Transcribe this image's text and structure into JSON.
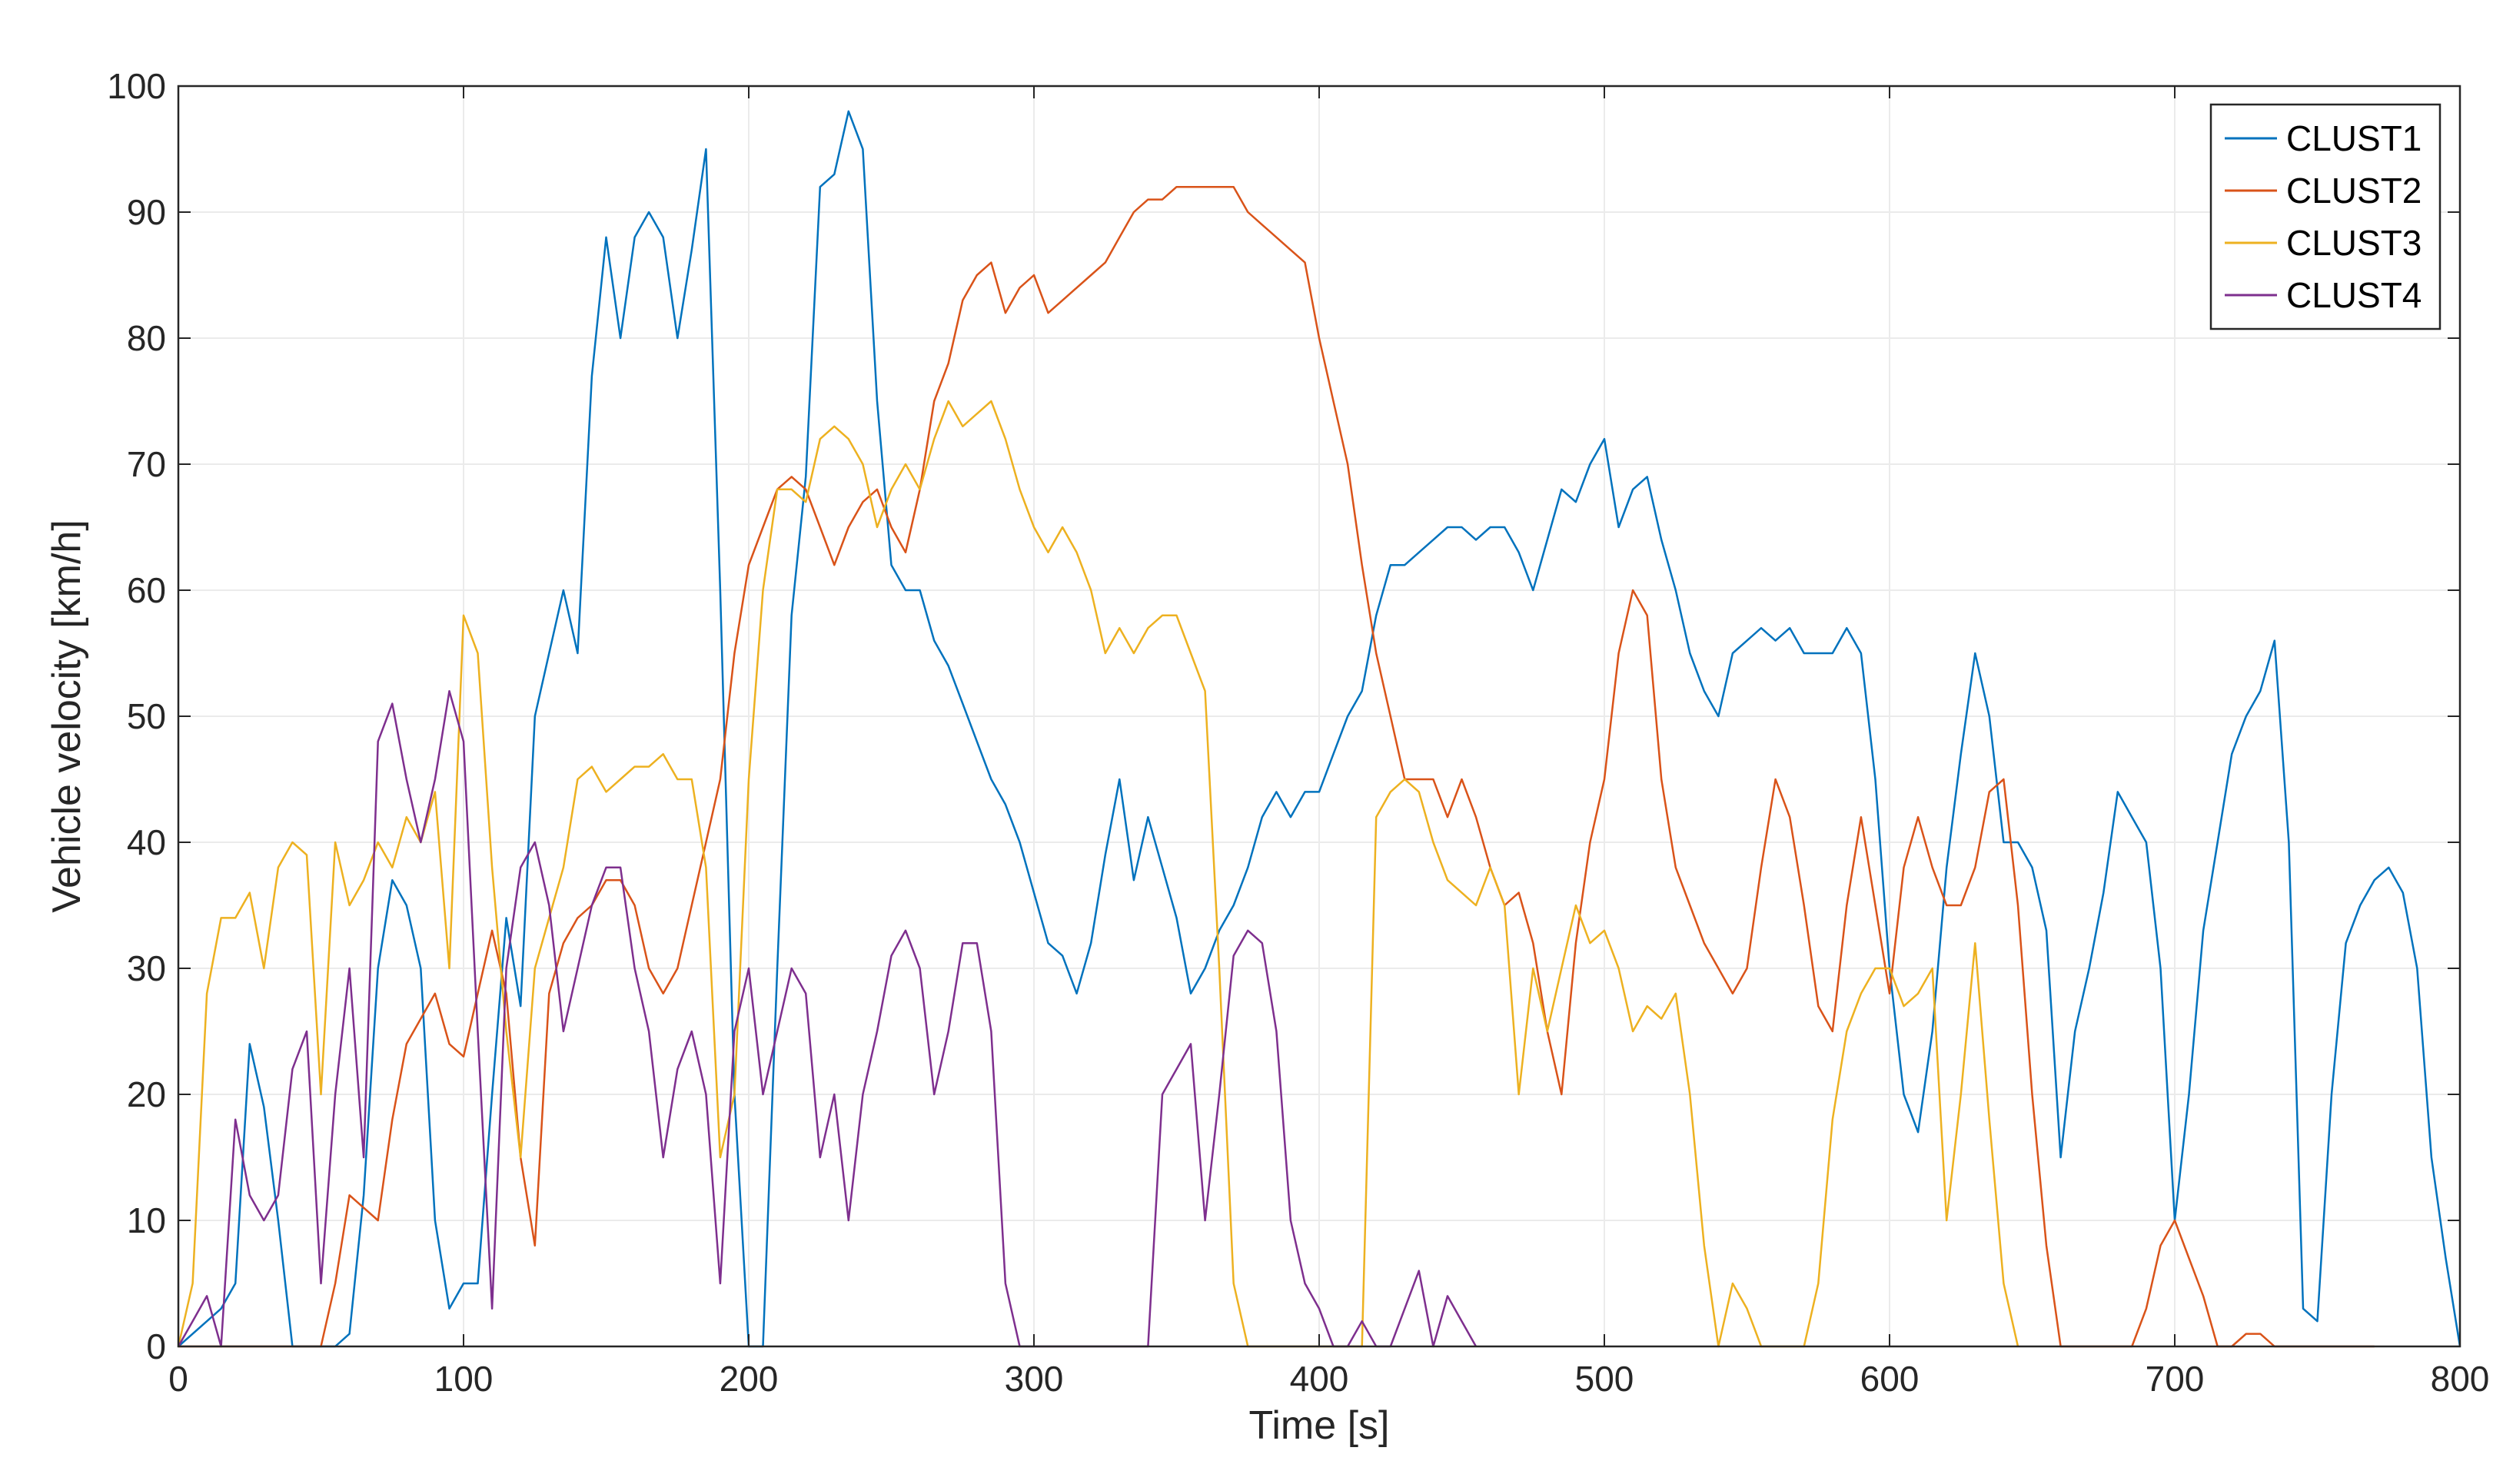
{
  "chart_data": {
    "type": "line",
    "title": "",
    "xlabel": "Time [s]",
    "ylabel": "Vehicle velocity [km/h]",
    "xlim": [
      0,
      800
    ],
    "ylim": [
      0,
      100
    ],
    "xticks": [
      "0",
      "100",
      "200",
      "300",
      "400",
      "500",
      "600",
      "700",
      "800"
    ],
    "yticks": [
      "0",
      "10",
      "20",
      "30",
      "40",
      "50",
      "60",
      "70",
      "80",
      "90",
      "100"
    ],
    "grid": true,
    "legend_position": "top-right",
    "series": [
      {
        "name": "CLUST1",
        "color": "#0072BD",
        "x": [
          0,
          5,
          10,
          15,
          20,
          25,
          30,
          35,
          40,
          45,
          50,
          55,
          60,
          65,
          70,
          75,
          80,
          85,
          90,
          95,
          100,
          105,
          110,
          115,
          120,
          125,
          130,
          135,
          140,
          145,
          150,
          155,
          160,
          165,
          170,
          175,
          180,
          185,
          190,
          195,
          200,
          205,
          210,
          215,
          220,
          225,
          230,
          235,
          240,
          245,
          250,
          255,
          260,
          265,
          270,
          275,
          280,
          285,
          290,
          295,
          300,
          305,
          310,
          315,
          320,
          325,
          330,
          335,
          340,
          345,
          350,
          355,
          360,
          365,
          370,
          375,
          380,
          385,
          390,
          395,
          400,
          405,
          410,
          415,
          420,
          425,
          430,
          435,
          440,
          445,
          450,
          455,
          460,
          465,
          470,
          475,
          480,
          485,
          490,
          495,
          500,
          505,
          510,
          515,
          520,
          525,
          530,
          535,
          540,
          545,
          550,
          555,
          560,
          565,
          570,
          575,
          580,
          585,
          590,
          595,
          600,
          605,
          610,
          615,
          620,
          625,
          630,
          635,
          640,
          645,
          650,
          655,
          660,
          665,
          670,
          675,
          680,
          685,
          690,
          695,
          700,
          705,
          710,
          715,
          720,
          725,
          730,
          735,
          740,
          745,
          750,
          755,
          760,
          765,
          770,
          775,
          780,
          785,
          790,
          795,
          800
        ],
        "values": [
          0,
          1,
          2,
          3,
          5,
          24,
          19,
          10,
          0,
          0,
          0,
          0,
          1,
          12,
          30,
          37,
          35,
          30,
          10,
          3,
          5,
          5,
          20,
          34,
          27,
          50,
          55,
          60,
          55,
          77,
          88,
          80,
          88,
          90,
          88,
          80,
          87,
          95,
          60,
          20,
          0,
          0,
          30,
          58,
          69,
          92,
          93,
          98,
          95,
          75,
          62,
          60,
          60,
          56,
          54,
          51,
          48,
          45,
          43,
          40,
          36,
          32,
          31,
          28,
          32,
          39,
          45,
          37,
          42,
          38,
          34,
          28,
          30,
          33,
          35,
          38,
          42,
          44,
          42,
          44,
          44,
          47,
          50,
          52,
          58,
          62,
          62,
          63,
          64,
          65,
          65,
          64,
          65,
          65,
          63,
          60,
          64,
          68,
          67,
          70,
          72,
          65,
          68,
          69,
          64,
          60,
          55,
          52,
          50,
          55,
          56,
          57,
          56,
          57,
          55,
          55,
          55,
          57,
          55,
          45,
          30,
          20,
          17,
          25,
          38,
          47,
          55,
          50,
          40,
          40,
          38,
          33,
          15,
          25,
          30,
          36,
          44,
          42,
          40,
          30,
          10,
          20,
          33,
          40,
          47,
          50,
          52,
          56,
          40,
          3,
          2,
          20,
          32,
          35,
          37,
          38,
          36,
          30,
          15,
          7,
          0
        ]
      },
      {
        "name": "CLUST2",
        "color": "#D95319",
        "x": [
          0,
          5,
          10,
          15,
          20,
          25,
          30,
          35,
          40,
          45,
          50,
          55,
          60,
          65,
          70,
          75,
          80,
          85,
          90,
          95,
          100,
          105,
          110,
          115,
          120,
          125,
          130,
          135,
          140,
          145,
          150,
          155,
          160,
          165,
          170,
          175,
          180,
          185,
          190,
          195,
          200,
          205,
          210,
          215,
          220,
          225,
          230,
          235,
          240,
          245,
          250,
          255,
          260,
          265,
          270,
          275,
          280,
          285,
          290,
          295,
          300,
          305,
          310,
          315,
          320,
          325,
          330,
          335,
          340,
          345,
          350,
          355,
          360,
          365,
          370,
          375,
          380,
          385,
          390,
          395,
          400,
          405,
          410,
          415,
          420,
          425,
          430,
          435,
          440,
          445,
          450,
          455,
          460,
          465,
          470,
          475,
          480,
          485,
          490,
          495,
          500,
          505,
          510,
          515,
          520,
          525,
          530,
          535,
          540,
          545,
          550,
          555,
          560,
          565,
          570,
          575,
          580,
          585,
          590,
          595,
          600,
          605,
          610,
          615,
          620,
          625,
          630,
          635,
          640,
          645,
          650,
          655,
          660,
          665,
          670,
          675,
          680,
          685,
          690,
          695,
          700,
          705,
          710,
          715,
          720,
          725,
          730,
          735,
          740,
          745,
          750,
          755,
          760,
          765,
          770
        ],
        "values": [
          0,
          0,
          0,
          0,
          0,
          0,
          0,
          0,
          0,
          0,
          0,
          5,
          12,
          11,
          10,
          18,
          24,
          26,
          28,
          24,
          23,
          28,
          33,
          28,
          15,
          8,
          28,
          32,
          34,
          35,
          37,
          37,
          35,
          30,
          28,
          30,
          35,
          40,
          45,
          55,
          62,
          65,
          68,
          69,
          68,
          65,
          62,
          65,
          67,
          68,
          65,
          63,
          68,
          75,
          78,
          83,
          85,
          86,
          82,
          84,
          85,
          82,
          83,
          84,
          85,
          86,
          88,
          90,
          91,
          91,
          92,
          92,
          92,
          92,
          92,
          90,
          89,
          88,
          87,
          86,
          80,
          75,
          70,
          62,
          55,
          50,
          45,
          45,
          45,
          42,
          45,
          42,
          38,
          35,
          36,
          32,
          25,
          20,
          32,
          40,
          45,
          55,
          60,
          58,
          45,
          38,
          35,
          32,
          30,
          28,
          30,
          38,
          45,
          42,
          35,
          27,
          25,
          35,
          42,
          35,
          28,
          38,
          42,
          38,
          35,
          35,
          38,
          44,
          45,
          35,
          20,
          8,
          0,
          0,
          0,
          0,
          0,
          0,
          3,
          8,
          10,
          7,
          4,
          0,
          0,
          1,
          1,
          0,
          0,
          0,
          0,
          0,
          0,
          0,
          0
        ]
      },
      {
        "name": "CLUST3",
        "color": "#EDB120",
        "x": [
          0,
          5,
          10,
          15,
          20,
          25,
          30,
          35,
          40,
          45,
          50,
          55,
          60,
          65,
          70,
          75,
          80,
          85,
          90,
          95,
          100,
          105,
          110,
          115,
          120,
          125,
          130,
          135,
          140,
          145,
          150,
          155,
          160,
          165,
          170,
          175,
          180,
          185,
          190,
          195,
          200,
          205,
          210,
          215,
          220,
          225,
          230,
          235,
          240,
          245,
          250,
          255,
          260,
          265,
          270,
          275,
          280,
          285,
          290,
          295,
          300,
          305,
          310,
          315,
          320,
          325,
          330,
          335,
          340,
          345,
          350,
          355,
          360,
          365,
          370,
          375,
          380,
          385,
          390,
          395,
          400,
          405,
          410,
          415,
          420,
          425,
          430,
          435,
          440,
          445,
          450,
          455,
          460,
          465,
          470,
          475,
          480,
          485,
          490,
          495,
          500,
          505,
          510,
          515,
          520,
          525,
          530,
          535,
          540,
          545,
          550,
          555,
          560,
          565,
          570,
          575,
          580,
          585,
          590,
          595,
          600,
          605,
          610,
          615,
          620,
          625,
          630,
          635,
          640,
          645
        ],
        "values": [
          0,
          5,
          28,
          34,
          34,
          36,
          30,
          38,
          40,
          39,
          20,
          40,
          35,
          37,
          40,
          38,
          42,
          40,
          44,
          30,
          58,
          55,
          38,
          25,
          15,
          30,
          34,
          38,
          45,
          46,
          44,
          45,
          46,
          46,
          47,
          45,
          45,
          38,
          15,
          20,
          45,
          60,
          68,
          68,
          67,
          72,
          73,
          72,
          70,
          65,
          68,
          70,
          68,
          72,
          75,
          73,
          74,
          75,
          72,
          68,
          65,
          63,
          65,
          63,
          60,
          55,
          57,
          55,
          57,
          58,
          58,
          55,
          52,
          30,
          5,
          0,
          0,
          0,
          0,
          0,
          0,
          0,
          0,
          0,
          42,
          44,
          45,
          44,
          40,
          37,
          36,
          35,
          38,
          35,
          20,
          30,
          25,
          30,
          35,
          32,
          33,
          30,
          25,
          27,
          26,
          28,
          20,
          8,
          0,
          5,
          3,
          0,
          0,
          0,
          0,
          5,
          18,
          25,
          28,
          30,
          30,
          27,
          28,
          30,
          10,
          20,
          32,
          18,
          5,
          0
        ]
      },
      {
        "name": "CLUST4",
        "color": "#7E2F8E",
        "x": [
          0,
          5,
          10,
          15,
          20,
          25,
          30,
          35,
          40,
          45,
          50,
          55,
          60,
          65,
          70,
          75,
          80,
          85,
          90,
          95,
          100,
          105,
          110,
          115,
          120,
          125,
          130,
          135,
          140,
          145,
          150,
          155,
          160,
          165,
          170,
          175,
          180,
          185,
          190,
          195,
          200,
          205,
          210,
          215,
          220,
          225,
          230,
          235,
          240,
          245,
          250,
          255,
          260,
          265,
          270,
          275,
          280,
          285,
          290,
          295,
          300,
          305,
          310,
          315,
          320,
          325,
          330,
          335,
          340,
          345,
          350,
          355,
          360,
          365,
          370,
          375,
          380,
          385,
          390,
          395,
          400,
          405,
          410,
          415,
          420,
          425,
          430,
          435,
          440,
          445,
          450,
          455
        ],
        "values": [
          0,
          2,
          4,
          0,
          18,
          12,
          10,
          12,
          22,
          25,
          5,
          20,
          30,
          15,
          48,
          51,
          45,
          40,
          45,
          52,
          48,
          25,
          3,
          30,
          38,
          40,
          35,
          25,
          30,
          35,
          38,
          38,
          30,
          25,
          15,
          22,
          25,
          20,
          5,
          25,
          30,
          20,
          25,
          30,
          28,
          15,
          20,
          10,
          20,
          25,
          31,
          33,
          30,
          20,
          25,
          32,
          32,
          25,
          5,
          0,
          0,
          0,
          0,
          0,
          0,
          0,
          0,
          0,
          0,
          20,
          22,
          24,
          10,
          20,
          31,
          33,
          32,
          25,
          10,
          5,
          3,
          0,
          0,
          2,
          0,
          0,
          3,
          6,
          0,
          4,
          2,
          0
        ]
      }
    ]
  }
}
